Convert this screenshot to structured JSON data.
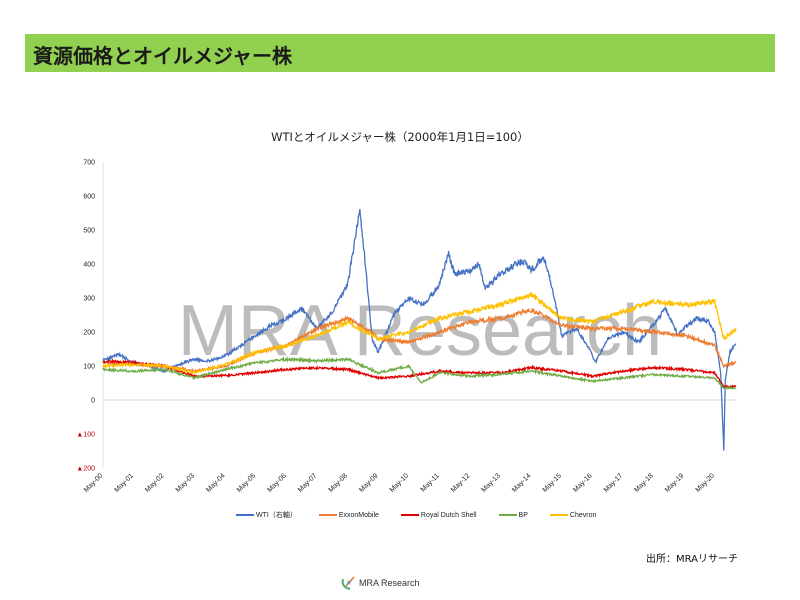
{
  "header": {
    "title": "資源価格とオイルメジャー株"
  },
  "footer": {
    "source": "出所：MRAリサーチ",
    "logo_text": "MRA Research"
  },
  "watermark": "MRA Research",
  "chart_data": {
    "type": "line",
    "title": "WTIとオイルメジャー株（2000年1月1日=100）",
    "ylim": [
      -200,
      700
    ],
    "y_ticks": [
      {
        "v": 700,
        "label": "700"
      },
      {
        "v": 600,
        "label": "600"
      },
      {
        "v": 500,
        "label": "500"
      },
      {
        "v": 400,
        "label": "400"
      },
      {
        "v": 300,
        "label": "300"
      },
      {
        "v": 200,
        "label": "200"
      },
      {
        "v": 100,
        "label": "100"
      },
      {
        "v": 0,
        "label": "0"
      },
      {
        "v": -100,
        "label": "▲100"
      },
      {
        "v": -200,
        "label": "▲200"
      }
    ],
    "x_tick_labels": [
      "May-00",
      "May-01",
      "May-02",
      "May-03",
      "May-04",
      "May-05",
      "May-06",
      "May-07",
      "May-08",
      "May-09",
      "May-10",
      "May-11",
      "May-12",
      "May-13",
      "May-14",
      "May-15",
      "May-16",
      "May-17",
      "May-18",
      "May-19",
      "May-20"
    ],
    "x_unit": "years since May-00",
    "xlim": [
      0,
      20.7
    ],
    "legend_position": "bottom",
    "series": [
      {
        "name": "WTI（右軸）",
        "color": "#4472c4",
        "points": [
          [
            0,
            115
          ],
          [
            0.5,
            135
          ],
          [
            1,
            110
          ],
          [
            1.5,
            100
          ],
          [
            2,
            85
          ],
          [
            2.5,
            105
          ],
          [
            3,
            120
          ],
          [
            3.5,
            115
          ],
          [
            4,
            130
          ],
          [
            4.5,
            160
          ],
          [
            5,
            190
          ],
          [
            5.5,
            220
          ],
          [
            6,
            240
          ],
          [
            6.5,
            270
          ],
          [
            7,
            210
          ],
          [
            7.5,
            260
          ],
          [
            8,
            340
          ],
          [
            8.2,
            450
          ],
          [
            8.4,
            560
          ],
          [
            8.6,
            380
          ],
          [
            8.8,
            180
          ],
          [
            9,
            140
          ],
          [
            9.5,
            250
          ],
          [
            10,
            300
          ],
          [
            10.5,
            280
          ],
          [
            11,
            340
          ],
          [
            11.3,
            430
          ],
          [
            11.5,
            370
          ],
          [
            12,
            380
          ],
          [
            12.3,
            400
          ],
          [
            12.5,
            330
          ],
          [
            13,
            370
          ],
          [
            13.5,
            400
          ],
          [
            13.8,
            410
          ],
          [
            14,
            380
          ],
          [
            14.4,
            420
          ],
          [
            14.7,
            330
          ],
          [
            15,
            190
          ],
          [
            15.5,
            210
          ],
          [
            15.9,
            150
          ],
          [
            16.1,
            110
          ],
          [
            16.5,
            180
          ],
          [
            17,
            200
          ],
          [
            17.5,
            170
          ],
          [
            18,
            220
          ],
          [
            18.4,
            270
          ],
          [
            18.8,
            190
          ],
          [
            19,
            210
          ],
          [
            19.4,
            240
          ],
          [
            19.8,
            230
          ],
          [
            20.0,
            200
          ],
          [
            20.2,
            80
          ],
          [
            20.3,
            -145
          ],
          [
            20.35,
            60
          ],
          [
            20.5,
            140
          ],
          [
            20.7,
            165
          ]
        ]
      },
      {
        "name": "ExxonMobile",
        "color": "#ed7d31",
        "points": [
          [
            0,
            110
          ],
          [
            1,
            105
          ],
          [
            2,
            100
          ],
          [
            3,
            85
          ],
          [
            4,
            100
          ],
          [
            5,
            140
          ],
          [
            6,
            160
          ],
          [
            7,
            210
          ],
          [
            8,
            240
          ],
          [
            8.8,
            200
          ],
          [
            9,
            180
          ],
          [
            10,
            170
          ],
          [
            11,
            200
          ],
          [
            12,
            230
          ],
          [
            13,
            240
          ],
          [
            14,
            265
          ],
          [
            15,
            220
          ],
          [
            16,
            210
          ],
          [
            17,
            210
          ],
          [
            18,
            200
          ],
          [
            19,
            190
          ],
          [
            20,
            160
          ],
          [
            20.3,
            100
          ],
          [
            20.7,
            110
          ]
        ]
      },
      {
        "name": "Royal Dutch Shell",
        "color": "#e00000",
        "points": [
          [
            0,
            115
          ],
          [
            1,
            110
          ],
          [
            2,
            100
          ],
          [
            3,
            70
          ],
          [
            4,
            72
          ],
          [
            5,
            80
          ],
          [
            6,
            90
          ],
          [
            7,
            95
          ],
          [
            8,
            90
          ],
          [
            9,
            65
          ],
          [
            10,
            70
          ],
          [
            11,
            85
          ],
          [
            12,
            80
          ],
          [
            13,
            80
          ],
          [
            14,
            95
          ],
          [
            15,
            85
          ],
          [
            16,
            70
          ],
          [
            17,
            85
          ],
          [
            18,
            95
          ],
          [
            19,
            90
          ],
          [
            20,
            80
          ],
          [
            20.3,
            40
          ],
          [
            20.7,
            40
          ]
        ]
      },
      {
        "name": "BP",
        "color": "#70ad47",
        "points": [
          [
            0,
            90
          ],
          [
            1,
            85
          ],
          [
            2,
            90
          ],
          [
            3,
            65
          ],
          [
            4,
            90
          ],
          [
            5,
            110
          ],
          [
            6,
            120
          ],
          [
            7,
            115
          ],
          [
            8,
            120
          ],
          [
            9,
            80
          ],
          [
            10,
            100
          ],
          [
            10.4,
            50
          ],
          [
            11,
            80
          ],
          [
            12,
            70
          ],
          [
            13,
            75
          ],
          [
            14,
            85
          ],
          [
            15,
            70
          ],
          [
            16,
            55
          ],
          [
            17,
            65
          ],
          [
            18,
            75
          ],
          [
            19,
            70
          ],
          [
            20,
            65
          ],
          [
            20.3,
            35
          ],
          [
            20.7,
            35
          ]
        ]
      },
      {
        "name": "Chevron",
        "color": "#ffc000",
        "points": [
          [
            0,
            100
          ],
          [
            1,
            105
          ],
          [
            2,
            100
          ],
          [
            3,
            80
          ],
          [
            4,
            105
          ],
          [
            5,
            140
          ],
          [
            6,
            160
          ],
          [
            7,
            190
          ],
          [
            8,
            230
          ],
          [
            9,
            180
          ],
          [
            10,
            200
          ],
          [
            11,
            240
          ],
          [
            12,
            260
          ],
          [
            13,
            280
          ],
          [
            14,
            310
          ],
          [
            15,
            240
          ],
          [
            16,
            230
          ],
          [
            17,
            260
          ],
          [
            18,
            290
          ],
          [
            19,
            280
          ],
          [
            20,
            290
          ],
          [
            20.3,
            180
          ],
          [
            20.7,
            210
          ]
        ]
      }
    ]
  }
}
